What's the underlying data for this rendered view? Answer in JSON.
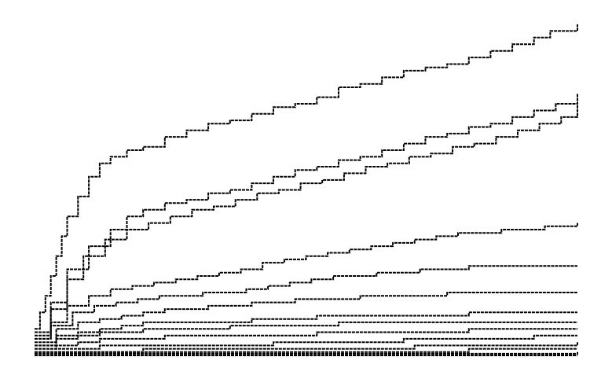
{
  "chart_data": {
    "type": "line",
    "title": "",
    "xlabel": "",
    "ylabel": "",
    "axes_visible": false,
    "grid": false,
    "legend": "none",
    "line_style": "dashed step",
    "line_color": "#000000",
    "background": "#ffffff",
    "xlim": [
      0,
      100
    ],
    "ylim": [
      0,
      100
    ],
    "series": [
      {
        "points": [
          [
            0,
            8
          ],
          [
            1,
            13
          ],
          [
            2,
            18
          ],
          [
            3,
            24
          ],
          [
            4,
            30
          ],
          [
            5,
            36
          ],
          [
            6,
            42
          ],
          [
            8,
            48
          ],
          [
            10,
            54
          ],
          [
            12,
            58
          ],
          [
            14,
            60
          ],
          [
            17,
            62
          ],
          [
            20,
            63
          ],
          [
            24,
            66
          ],
          [
            28,
            68
          ],
          [
            32,
            70
          ],
          [
            36,
            71
          ],
          [
            40,
            73
          ],
          [
            44,
            75
          ],
          [
            48,
            76
          ],
          [
            52,
            78
          ],
          [
            56,
            81
          ],
          [
            60,
            82
          ],
          [
            64,
            84
          ],
          [
            68,
            86
          ],
          [
            72,
            87
          ],
          [
            76,
            88
          ],
          [
            80,
            90
          ],
          [
            84,
            92
          ],
          [
            88,
            94
          ],
          [
            92,
            96
          ],
          [
            95,
            98
          ],
          [
            100,
            100
          ]
        ]
      },
      {
        "points": [
          [
            0,
            7
          ],
          [
            3,
            16
          ],
          [
            6,
            26
          ],
          [
            10,
            33
          ],
          [
            14,
            38
          ],
          [
            17,
            42
          ],
          [
            20,
            44
          ],
          [
            24,
            46
          ],
          [
            28,
            47
          ],
          [
            32,
            49
          ],
          [
            36,
            50
          ],
          [
            40,
            52
          ],
          [
            44,
            54
          ],
          [
            48,
            56
          ],
          [
            52,
            57
          ],
          [
            56,
            59
          ],
          [
            60,
            60
          ],
          [
            64,
            62
          ],
          [
            68,
            64
          ],
          [
            72,
            66
          ],
          [
            76,
            67
          ],
          [
            80,
            69
          ],
          [
            84,
            70
          ],
          [
            88,
            72
          ],
          [
            92,
            74
          ],
          [
            96,
            76
          ],
          [
            100,
            79
          ]
        ]
      },
      {
        "points": [
          [
            0,
            6
          ],
          [
            3,
            14
          ],
          [
            6,
            23
          ],
          [
            9,
            30
          ],
          [
            13,
            35
          ],
          [
            17,
            38
          ],
          [
            21,
            40
          ],
          [
            25,
            42
          ],
          [
            29,
            44
          ],
          [
            33,
            45
          ],
          [
            37,
            47
          ],
          [
            41,
            49
          ],
          [
            45,
            50
          ],
          [
            49,
            52
          ],
          [
            53,
            53
          ],
          [
            57,
            55
          ],
          [
            61,
            57
          ],
          [
            65,
            58
          ],
          [
            69,
            60
          ],
          [
            73,
            61
          ],
          [
            77,
            63
          ],
          [
            81,
            64
          ],
          [
            85,
            66
          ],
          [
            89,
            68
          ],
          [
            93,
            70
          ],
          [
            97,
            72
          ],
          [
            100,
            76
          ]
        ]
      },
      {
        "points": [
          [
            0,
            5
          ],
          [
            3,
            10
          ],
          [
            6,
            15
          ],
          [
            10,
            18
          ],
          [
            14,
            20
          ],
          [
            18,
            21
          ],
          [
            22,
            22
          ],
          [
            26,
            23
          ],
          [
            30,
            24
          ],
          [
            34,
            25
          ],
          [
            38,
            26
          ],
          [
            42,
            28
          ],
          [
            46,
            29
          ],
          [
            50,
            30
          ],
          [
            54,
            31
          ],
          [
            58,
            32
          ],
          [
            62,
            33
          ],
          [
            66,
            34
          ],
          [
            70,
            35
          ],
          [
            74,
            36
          ],
          [
            78,
            37
          ],
          [
            82,
            37
          ],
          [
            86,
            38
          ],
          [
            90,
            38
          ],
          [
            94,
            39
          ],
          [
            100,
            40
          ]
        ]
      },
      {
        "points": [
          [
            0,
            5
          ],
          [
            3,
            9
          ],
          [
            7,
            13
          ],
          [
            11,
            15
          ],
          [
            15,
            16
          ],
          [
            19,
            17
          ],
          [
            23,
            18
          ],
          [
            27,
            18
          ],
          [
            31,
            19
          ],
          [
            35,
            19
          ],
          [
            39,
            20
          ],
          [
            43,
            21
          ],
          [
            47,
            22
          ],
          [
            51,
            23
          ],
          [
            55,
            24
          ],
          [
            59,
            24
          ],
          [
            63,
            25
          ],
          [
            67,
            25
          ],
          [
            71,
            26
          ],
          [
            75,
            26
          ],
          [
            80,
            27
          ],
          [
            85,
            27
          ],
          [
            90,
            27
          ],
          [
            95,
            27
          ],
          [
            100,
            27
          ]
        ]
      },
      {
        "points": [
          [
            0,
            4
          ],
          [
            4,
            8
          ],
          [
            8,
            10
          ],
          [
            12,
            11
          ],
          [
            16,
            12
          ],
          [
            20,
            13
          ],
          [
            24,
            14
          ],
          [
            28,
            14
          ],
          [
            32,
            15
          ],
          [
            36,
            15
          ],
          [
            40,
            16
          ],
          [
            44,
            16
          ],
          [
            48,
            17
          ],
          [
            52,
            17
          ],
          [
            56,
            17
          ],
          [
            60,
            18
          ],
          [
            64,
            18
          ],
          [
            68,
            18
          ],
          [
            72,
            18
          ],
          [
            76,
            19
          ],
          [
            80,
            19
          ],
          [
            85,
            19
          ],
          [
            90,
            19
          ],
          [
            95,
            19
          ],
          [
            100,
            19
          ]
        ]
      },
      {
        "points": [
          [
            0,
            3
          ],
          [
            4,
            6
          ],
          [
            8,
            7
          ],
          [
            12,
            8
          ],
          [
            16,
            9
          ],
          [
            20,
            10
          ],
          [
            24,
            10
          ],
          [
            28,
            10
          ],
          [
            32,
            10
          ],
          [
            36,
            10
          ],
          [
            40,
            11
          ],
          [
            44,
            11
          ],
          [
            48,
            11
          ],
          [
            52,
            12
          ],
          [
            56,
            12
          ],
          [
            60,
            12
          ],
          [
            64,
            12
          ],
          [
            68,
            12
          ],
          [
            72,
            12
          ],
          [
            76,
            12
          ],
          [
            80,
            13
          ],
          [
            85,
            13
          ],
          [
            90,
            13
          ],
          [
            95,
            13
          ],
          [
            100,
            13
          ]
        ]
      },
      {
        "points": [
          [
            0,
            3
          ],
          [
            4,
            5
          ],
          [
            8,
            6
          ],
          [
            12,
            7
          ],
          [
            16,
            7
          ],
          [
            20,
            8
          ],
          [
            24,
            8
          ],
          [
            28,
            8
          ],
          [
            32,
            8
          ],
          [
            36,
            9
          ],
          [
            40,
            9
          ],
          [
            44,
            9
          ],
          [
            48,
            9
          ],
          [
            52,
            9
          ],
          [
            56,
            10
          ],
          [
            60,
            10
          ],
          [
            64,
            10
          ],
          [
            68,
            10
          ],
          [
            72,
            10
          ],
          [
            76,
            10
          ],
          [
            80,
            10
          ],
          [
            85,
            10
          ],
          [
            90,
            10
          ],
          [
            95,
            10
          ],
          [
            100,
            10
          ]
        ]
      },
      {
        "points": [
          [
            0,
            2
          ],
          [
            4,
            3
          ],
          [
            8,
            4
          ],
          [
            12,
            5
          ],
          [
            16,
            5
          ],
          [
            20,
            5
          ],
          [
            24,
            6
          ],
          [
            28,
            6
          ],
          [
            32,
            6
          ],
          [
            36,
            6
          ],
          [
            40,
            6
          ],
          [
            44,
            6
          ],
          [
            48,
            6
          ],
          [
            52,
            7
          ],
          [
            56,
            7
          ],
          [
            60,
            7
          ],
          [
            64,
            7
          ],
          [
            68,
            7
          ],
          [
            72,
            7
          ],
          [
            76,
            7
          ],
          [
            80,
            8
          ],
          [
            85,
            8
          ],
          [
            90,
            8
          ],
          [
            95,
            8
          ],
          [
            100,
            8
          ]
        ]
      },
      {
        "points": [
          [
            0,
            2
          ],
          [
            6,
            2
          ],
          [
            12,
            3
          ],
          [
            20,
            3
          ],
          [
            28,
            3
          ],
          [
            36,
            3
          ],
          [
            44,
            4
          ],
          [
            52,
            4
          ],
          [
            60,
            4
          ],
          [
            68,
            5
          ],
          [
            76,
            5
          ],
          [
            84,
            5
          ],
          [
            92,
            6
          ],
          [
            100,
            6
          ]
        ]
      },
      {
        "points": [
          [
            0,
            1
          ],
          [
            10,
            1
          ],
          [
            20,
            2
          ],
          [
            30,
            2
          ],
          [
            40,
            2
          ],
          [
            50,
            2
          ],
          [
            60,
            2
          ],
          [
            70,
            3
          ],
          [
            80,
            3
          ],
          [
            90,
            3
          ],
          [
            100,
            4
          ]
        ]
      },
      {
        "points": [
          [
            0,
            1
          ],
          [
            20,
            1
          ],
          [
            40,
            1
          ],
          [
            60,
            1
          ],
          [
            80,
            2
          ],
          [
            100,
            2
          ]
        ]
      },
      {
        "points": [
          [
            0,
            0.5
          ],
          [
            50,
            0.5
          ],
          [
            100,
            1
          ]
        ]
      },
      {
        "points": [
          [
            0,
            0
          ],
          [
            100,
            0
          ]
        ]
      }
    ]
  }
}
